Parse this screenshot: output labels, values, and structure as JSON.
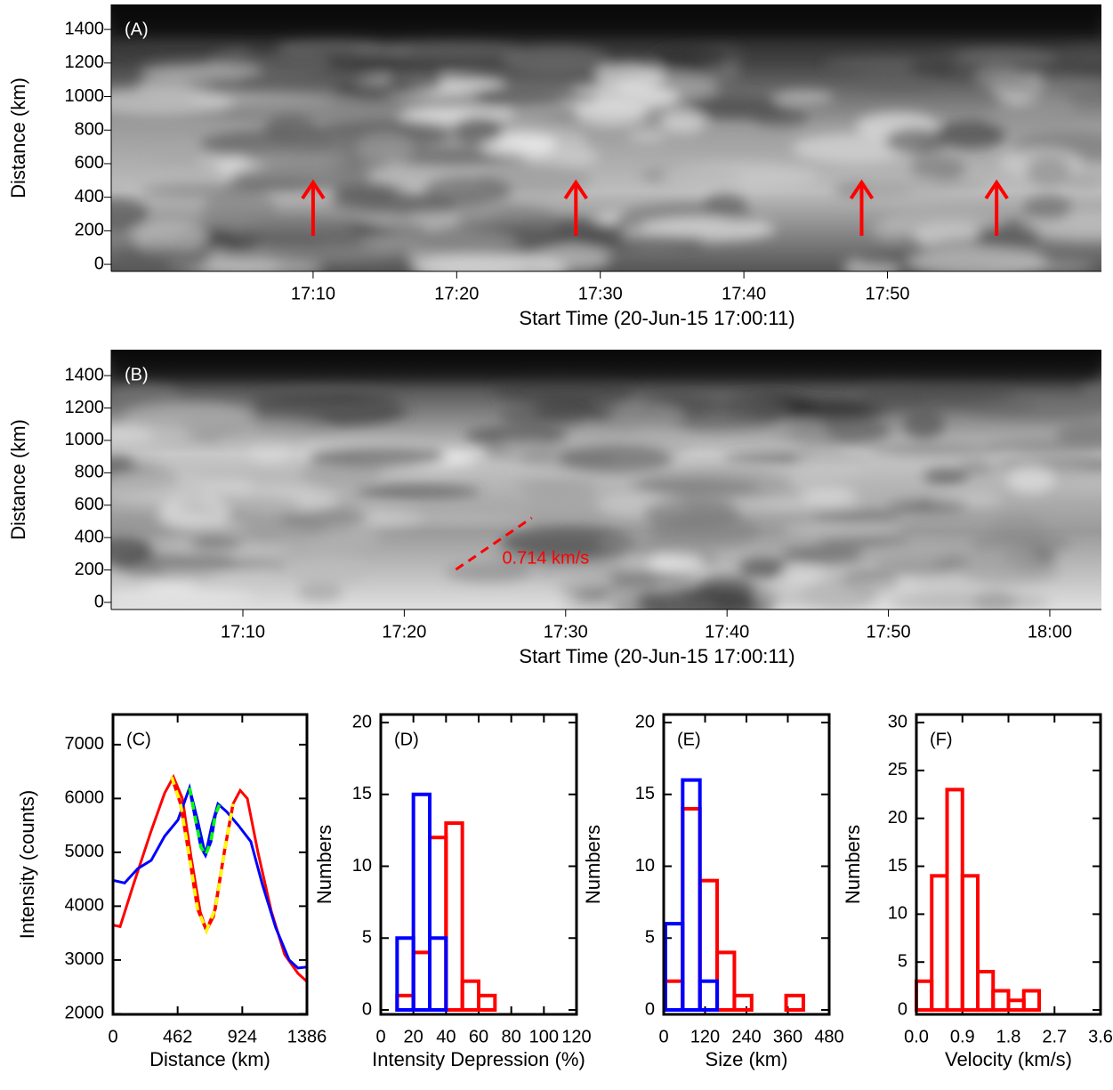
{
  "chart_data": [
    {
      "type": "image",
      "panel_label": "(A)",
      "ylabel": "Distance (km)",
      "xlabel": "Start Time (20-Jun-15 17:00:11)",
      "xlim": [
        -4.06,
        64.9
      ],
      "ylim": [
        -42,
        1549
      ],
      "xticks": [
        {
          "value": 10,
          "label": "17:10"
        },
        {
          "value": 20,
          "label": "17:20"
        },
        {
          "value": 30,
          "label": "17:30"
        },
        {
          "value": 40,
          "label": "17:40"
        },
        {
          "value": 50,
          "label": "17:50"
        }
      ],
      "yticks": [
        0,
        200,
        400,
        600,
        800,
        1000,
        1200,
        1400
      ],
      "arrow_color": "#ff0000",
      "arrows": [
        {
          "x": 10.0,
          "y0": 170,
          "y1": 488
        },
        {
          "x": 28.3,
          "y0": 170,
          "y1": 488
        },
        {
          "x": 48.2,
          "y0": 170,
          "y1": 488
        },
        {
          "x": 57.6,
          "y0": 170,
          "y1": 488
        }
      ]
    },
    {
      "type": "image",
      "panel_label": "(B)",
      "ylabel": "Distance (km)",
      "xlabel": "Start Time (20-Jun-15 17:00:11)",
      "xlim": [
        1.84,
        63.2
      ],
      "ylim": [
        -44,
        1560
      ],
      "xticks": [
        {
          "value": 10,
          "label": "17:10"
        },
        {
          "value": 20,
          "label": "17:20"
        },
        {
          "value": 30,
          "label": "17:30"
        },
        {
          "value": 40,
          "label": "17:40"
        },
        {
          "value": 50,
          "label": "17:50"
        },
        {
          "value": 60,
          "label": "18:00"
        }
      ],
      "yticks": [
        0,
        200,
        400,
        600,
        800,
        1000,
        1200,
        1400
      ],
      "fit_line": {
        "x": [
          23.2,
          27.9
        ],
        "y": [
          203,
          522
        ],
        "label": "0.714 km/s",
        "color": "#ff0000"
      }
    },
    {
      "type": "line",
      "panel_label": "(C)",
      "ylabel": "Intensity (counts)",
      "xlabel": "Distance (km)",
      "xlim": [
        0,
        1386
      ],
      "ylim": [
        1990,
        7560
      ],
      "xticks": [
        0,
        462,
        924,
        1386
      ],
      "yticks": [
        2000,
        3000,
        4000,
        5000,
        6000,
        7000
      ],
      "series": [
        {
          "color": "#ff0000",
          "x": [
            0,
            51,
            146,
            273,
            369,
            432,
            496,
            559,
            623,
            668,
            718,
            782,
            858,
            909,
            960,
            1036,
            1132,
            1227,
            1322,
            1386
          ],
          "values": [
            3650,
            3620,
            4400,
            5400,
            6100,
            6400,
            6000,
            4900,
            3900,
            3550,
            3800,
            4800,
            5900,
            6150,
            6000,
            5000,
            3900,
            3100,
            2750,
            2600
          ]
        },
        {
          "color": "#0000ff",
          "x": [
            0,
            83,
            178,
            273,
            369,
            464,
            547,
            604,
            661,
            706,
            750,
            814,
            896,
            985,
            1068,
            1163,
            1259,
            1322,
            1386
          ],
          "values": [
            4480,
            4430,
            4700,
            4850,
            5300,
            5600,
            6200,
            5600,
            4950,
            5500,
            5900,
            5750,
            5500,
            5200,
            4400,
            3600,
            3000,
            2850,
            2870
          ]
        },
        {
          "color": "#ffff00",
          "dash_base": "#ff0000",
          "x": [
            420,
            483,
            547,
            604,
            668,
            731,
            795,
            858
          ],
          "values": [
            6400,
            5900,
            4900,
            3950,
            3550,
            3950,
            5000,
            5900
          ]
        },
        {
          "color": "#00ff00",
          "dash_base": "#0000ff",
          "x": [
            547,
            591,
            629,
            661,
            699,
            731,
            763
          ],
          "values": [
            6200,
            5600,
            5100,
            4950,
            5200,
            5700,
            5900
          ]
        }
      ]
    },
    {
      "type": "histogram",
      "panel_label": "(D)",
      "ylabel": "Numbers",
      "xlabel": "Intensity Depression (%)",
      "xlim": [
        0,
        120
      ],
      "ylim": [
        -0.31,
        20.56
      ],
      "xticks": [
        0,
        20,
        40,
        60,
        80,
        100,
        120
      ],
      "yticks": [
        0,
        5,
        10,
        15,
        20
      ],
      "series": [
        {
          "color": "#ff0000",
          "bins": [
            10,
            20,
            30,
            40,
            50,
            60,
            70
          ],
          "values": [
            1,
            4,
            12,
            13,
            2,
            1
          ]
        },
        {
          "color": "#0000ff",
          "bins": [
            10,
            20,
            30,
            40
          ],
          "values": [
            5,
            15,
            5
          ]
        }
      ]
    },
    {
      "type": "histogram",
      "panel_label": "(E)",
      "ylabel": "Numbers",
      "xlabel": "Size (km)",
      "xlim": [
        0,
        480
      ],
      "ylim": [
        -0.31,
        20.56
      ],
      "xticks": [
        0,
        120,
        240,
        360,
        480
      ],
      "yticks": [
        0,
        5,
        10,
        15,
        20
      ],
      "series": [
        {
          "color": "#ff0000",
          "bins": [
            5,
            55,
            105,
            155,
            205,
            255,
            305,
            355,
            405
          ],
          "values": [
            2,
            14,
            9,
            4,
            1,
            0,
            0,
            1
          ]
        },
        {
          "color": "#0000ff",
          "bins": [
            5,
            55,
            105,
            155,
            205
          ],
          "values": [
            6,
            16,
            2,
            0
          ]
        }
      ]
    },
    {
      "type": "histogram",
      "panel_label": "(F)",
      "ylabel": "Numbers",
      "xlabel": "Velocity (km/s)",
      "xlim": [
        0,
        3.6
      ],
      "ylim": [
        -0.46,
        30.84
      ],
      "xticks": [
        {
          "value": 0,
          "label": "0.0"
        },
        0.9,
        1.8,
        2.7,
        3.6
      ],
      "yticks": [
        0,
        5,
        10,
        15,
        20,
        25,
        30
      ],
      "series": [
        {
          "color": "#ff0000",
          "bins": [
            0,
            0.3,
            0.6,
            0.9,
            1.2,
            1.5,
            1.8,
            2.1,
            2.4
          ],
          "values": [
            3,
            14,
            23,
            14,
            4,
            2,
            1,
            2
          ]
        }
      ]
    }
  ]
}
